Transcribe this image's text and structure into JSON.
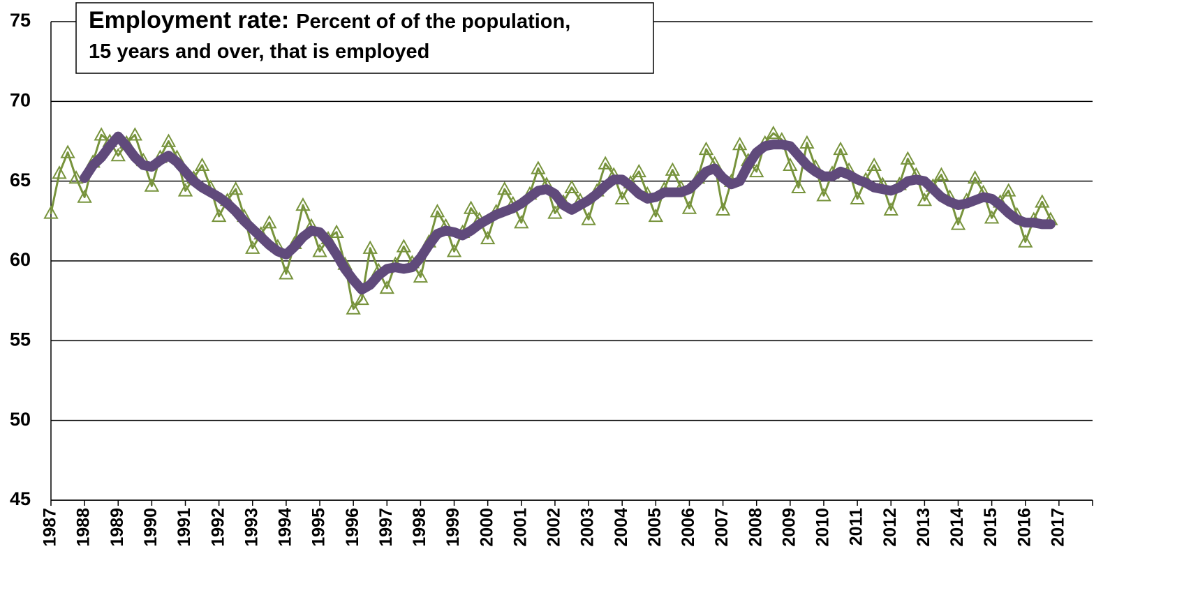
{
  "chart_data": {
    "type": "line",
    "title": "Employment rate:",
    "subtitle": [
      "Percent of of the population,",
      "15 years and over, that is employed"
    ],
    "xlim": [
      1987,
      2018
    ],
    "xticks": [
      1987,
      1988,
      1989,
      1990,
      1991,
      1992,
      1993,
      1994,
      1995,
      1996,
      1997,
      1998,
      1999,
      2000,
      2001,
      2002,
      2003,
      2004,
      2005,
      2006,
      2007,
      2008,
      2009,
      2010,
      2011,
      2012,
      2013,
      2014,
      2015,
      2016,
      2017
    ],
    "ylim": [
      45,
      75
    ],
    "yticks": [
      45,
      50,
      55,
      60,
      65,
      70,
      75
    ],
    "grid": true,
    "x": [
      1987,
      1987.25,
      1987.5,
      1987.75,
      1988,
      1988.25,
      1988.5,
      1988.75,
      1989,
      1989.25,
      1989.5,
      1989.75,
      1990,
      1990.25,
      1990.5,
      1990.75,
      1991,
      1991.25,
      1991.5,
      1991.75,
      1992,
      1992.25,
      1992.5,
      1992.75,
      1993,
      1993.25,
      1993.5,
      1993.75,
      1994,
      1994.25,
      1994.5,
      1994.75,
      1995,
      1995.25,
      1995.5,
      1995.75,
      1996,
      1996.25,
      1996.5,
      1996.75,
      1997,
      1997.25,
      1997.5,
      1997.75,
      1998,
      1998.25,
      1998.5,
      1998.75,
      1999,
      1999.25,
      1999.5,
      1999.75,
      2000,
      2000.25,
      2000.5,
      2000.75,
      2001,
      2001.25,
      2001.5,
      2001.75,
      2002,
      2002.25,
      2002.5,
      2002.75,
      2003,
      2003.25,
      2003.5,
      2003.75,
      2004,
      2004.25,
      2004.5,
      2004.75,
      2005,
      2005.25,
      2005.5,
      2005.75,
      2006,
      2006.25,
      2006.5,
      2006.75,
      2007,
      2007.25,
      2007.5,
      2007.75,
      2008,
      2008.25,
      2008.5,
      2008.75,
      2009,
      2009.25,
      2009.5,
      2009.75,
      2010,
      2010.25,
      2010.5,
      2010.75,
      2011,
      2011.25,
      2011.5,
      2011.75,
      2012,
      2012.25,
      2012.5,
      2012.75,
      2013,
      2013.25,
      2013.5,
      2013.75,
      2014,
      2014.25,
      2014.5,
      2014.75,
      2015,
      2015.25,
      2015.5,
      2015.75,
      2016,
      2016.25,
      2016.5,
      2016.75
    ],
    "series": [
      {
        "color": "#77933c",
        "marker": "triangle",
        "values": [
          63.0,
          65.5,
          66.8,
          65.2,
          64.0,
          66.2,
          67.9,
          67.5,
          66.6,
          67.4,
          67.9,
          66.3,
          64.7,
          66.5,
          67.5,
          66.5,
          64.4,
          65.2,
          66.0,
          64.6,
          62.8,
          63.8,
          64.5,
          62.8,
          60.8,
          61.7,
          62.4,
          60.9,
          59.2,
          61.1,
          63.5,
          62.2,
          60.6,
          61.4,
          61.8,
          59.8,
          57.0,
          57.6,
          60.8,
          59.4,
          58.3,
          59.8,
          60.9,
          59.9,
          59.0,
          61.2,
          63.1,
          62.2,
          60.6,
          61.8,
          63.3,
          62.6,
          61.4,
          63.1,
          64.5,
          63.6,
          62.4,
          64.2,
          65.8,
          64.8,
          63.0,
          63.7,
          64.6,
          63.8,
          62.6,
          64.4,
          66.1,
          65.4,
          63.9,
          64.9,
          65.6,
          64.2,
          62.8,
          64.5,
          65.7,
          64.6,
          63.3,
          65.2,
          67.0,
          66.1,
          63.2,
          65.0,
          67.3,
          66.3,
          65.6,
          67.4,
          68.0,
          67.6,
          66.0,
          64.6,
          67.4,
          65.9,
          64.1,
          65.5,
          67.0,
          65.7,
          63.9,
          65.1,
          66.0,
          64.8,
          63.2,
          64.8,
          66.4,
          65.4,
          63.8,
          64.7,
          65.4,
          64.0,
          62.3,
          63.8,
          65.2,
          64.3,
          62.7,
          63.7,
          64.4,
          62.9,
          61.2,
          62.6,
          63.7,
          62.6
        ]
      },
      {
        "color": "#604a7b",
        "values": [
          null,
          null,
          null,
          null,
          65.2,
          66.0,
          66.5,
          67.2,
          67.8,
          67.2,
          66.5,
          66.0,
          65.9,
          66.3,
          66.6,
          66.2,
          65.6,
          65.0,
          64.6,
          64.3,
          64.0,
          63.6,
          63.1,
          62.5,
          62.0,
          61.5,
          61.0,
          60.6,
          60.4,
          60.9,
          61.5,
          61.9,
          61.8,
          61.2,
          60.4,
          59.5,
          58.8,
          58.2,
          58.5,
          59.1,
          59.5,
          59.6,
          59.5,
          59.6,
          60.2,
          61.0,
          61.7,
          61.9,
          61.8,
          61.6,
          61.9,
          62.3,
          62.6,
          62.9,
          63.1,
          63.3,
          63.6,
          64.0,
          64.4,
          64.5,
          64.2,
          63.5,
          63.2,
          63.5,
          63.8,
          64.2,
          64.7,
          65.1,
          65.1,
          64.7,
          64.2,
          63.9,
          64.0,
          64.3,
          64.3,
          64.3,
          64.5,
          65.0,
          65.6,
          65.8,
          65.2,
          64.8,
          65.0,
          66.0,
          66.8,
          67.2,
          67.3,
          67.3,
          67.2,
          66.6,
          66.0,
          65.6,
          65.3,
          65.3,
          65.6,
          65.4,
          65.1,
          64.9,
          64.6,
          64.5,
          64.4,
          64.6,
          65.0,
          65.1,
          65.0,
          64.5,
          64.0,
          63.7,
          63.5,
          63.6,
          63.8,
          64.0,
          63.9,
          63.5,
          63.0,
          62.6,
          62.4,
          62.4,
          62.3,
          62.3
        ]
      }
    ]
  }
}
